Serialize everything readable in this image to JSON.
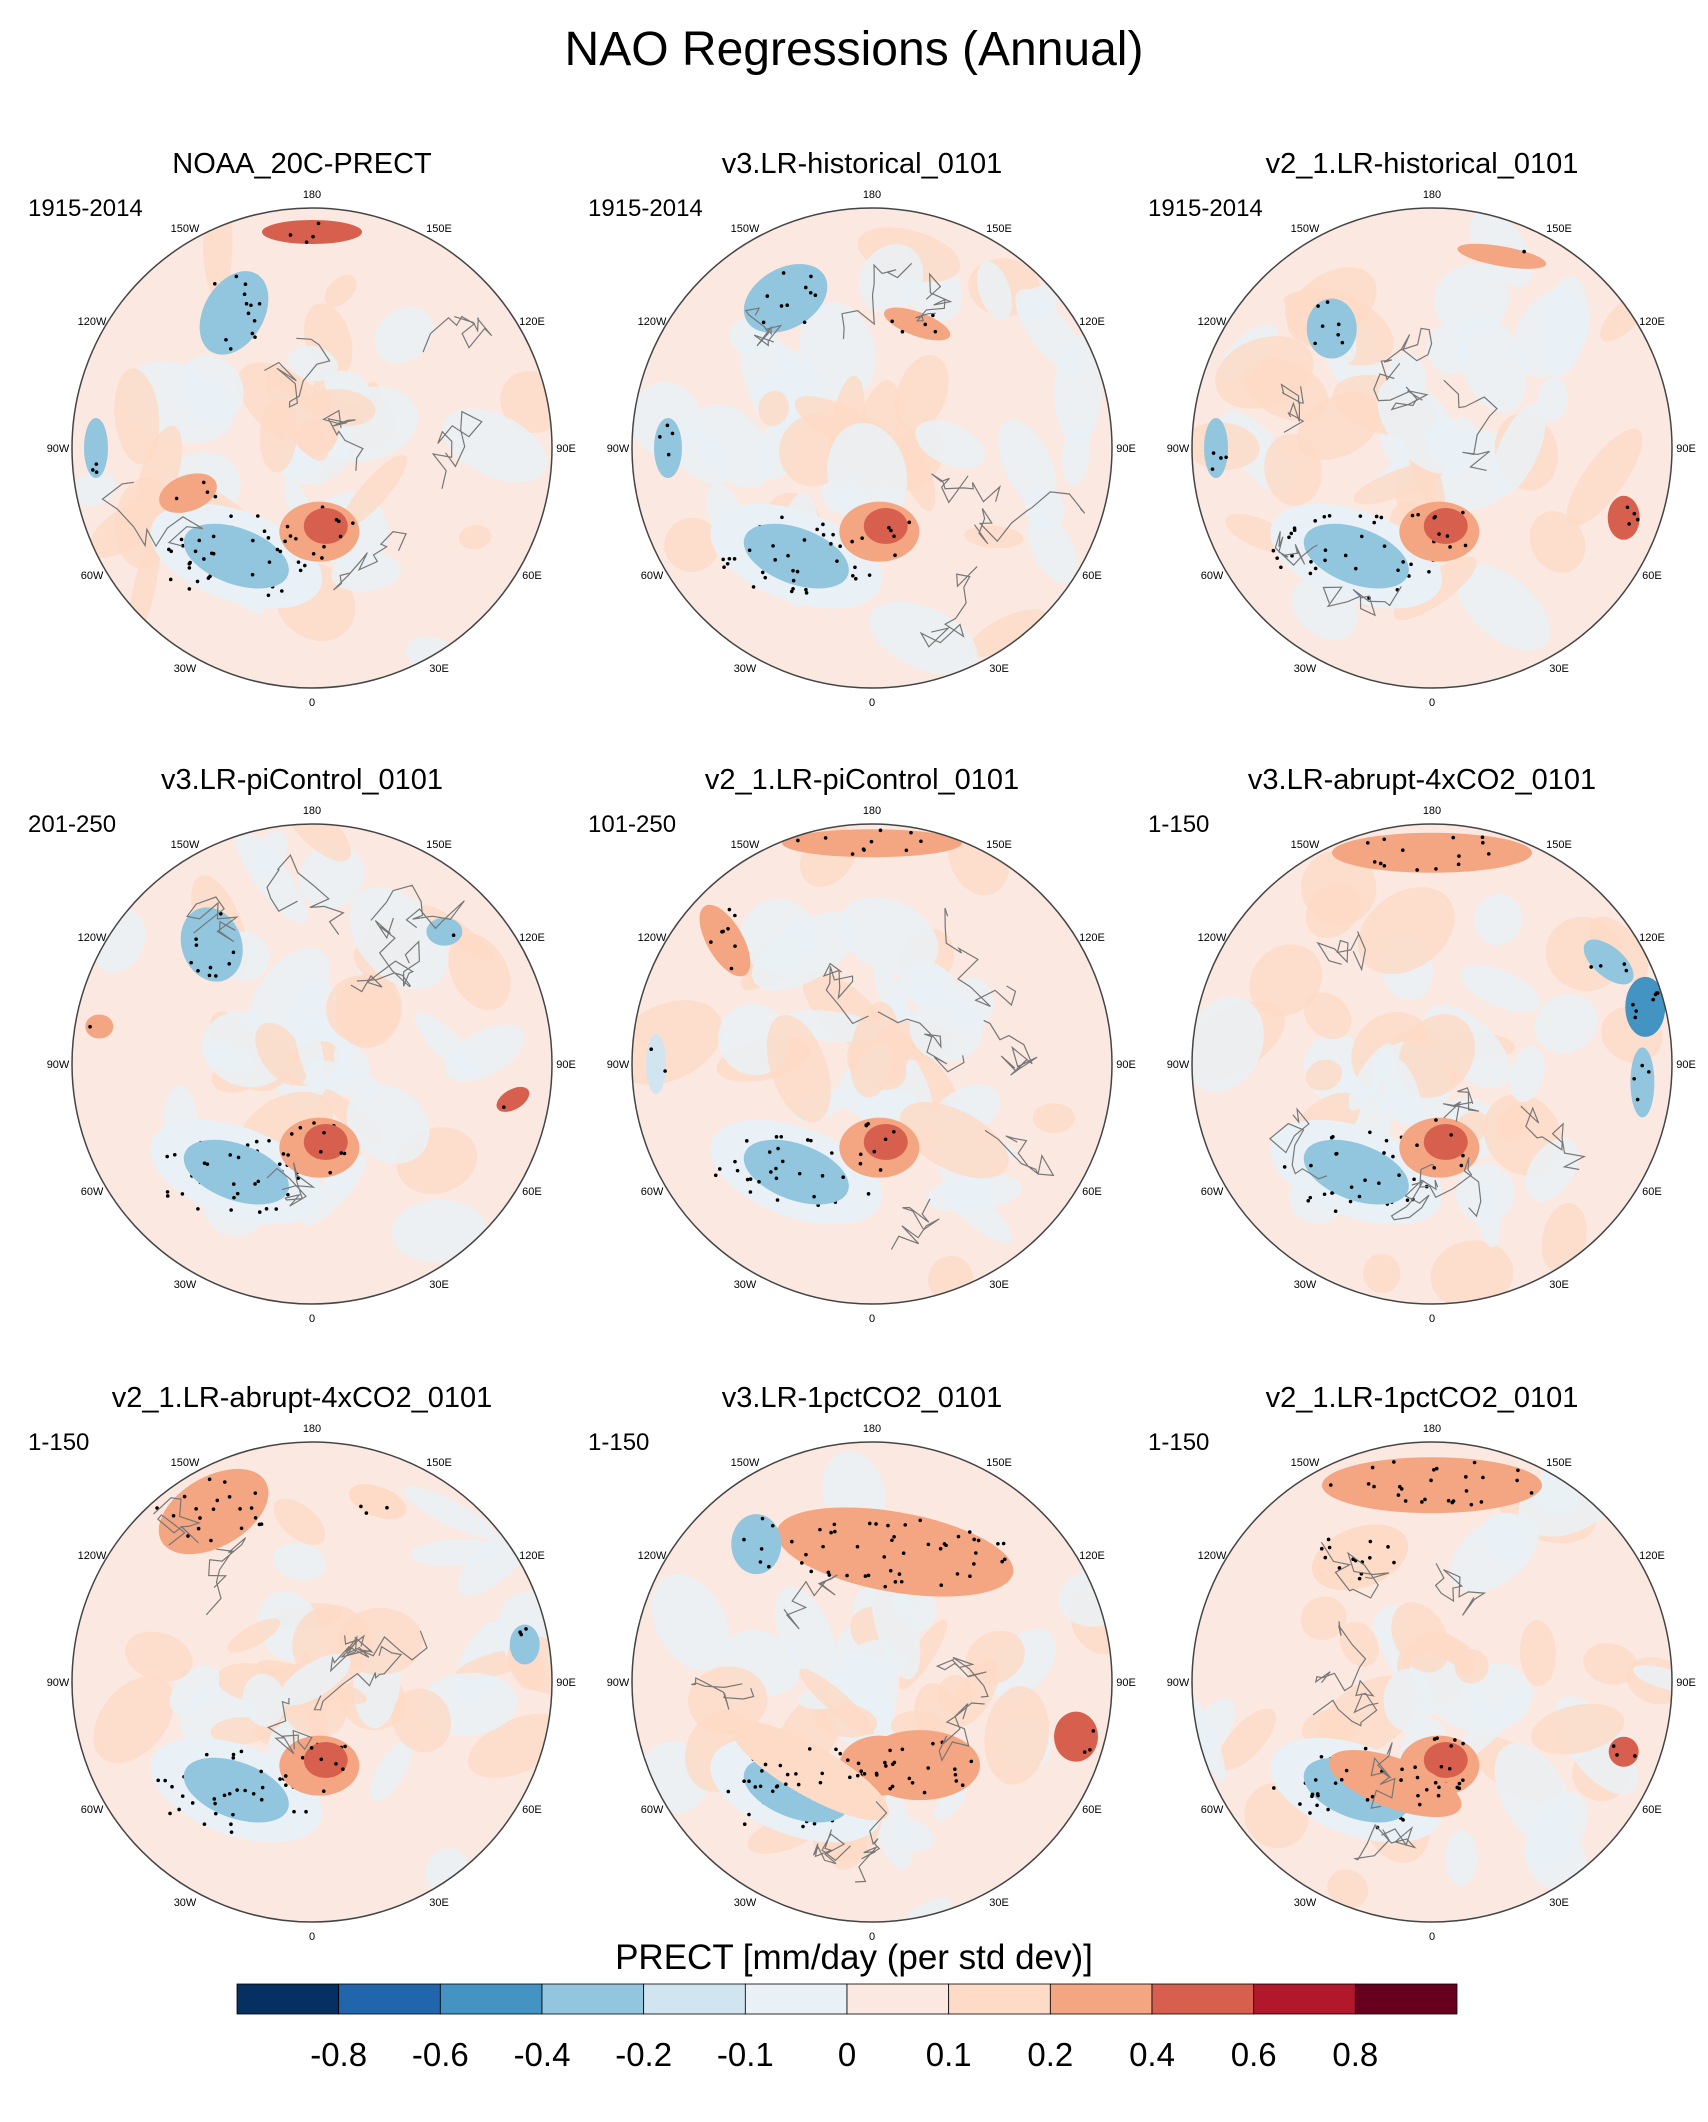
{
  "title": "NAO Regressions (Annual)",
  "panels": [
    {
      "title": "NOAA_20C-PRECT",
      "period": "1915-2014"
    },
    {
      "title": "v3.LR-historical_0101",
      "period": "1915-2014"
    },
    {
      "title": "v2_1.LR-historical_0101",
      "period": "1915-2014"
    },
    {
      "title": "v3.LR-piControl_0101",
      "period": "201-250"
    },
    {
      "title": "v2_1.LR-piControl_0101",
      "period": "101-250"
    },
    {
      "title": "v3.LR-abrupt-4xCO2_0101",
      "period": "1-150"
    },
    {
      "title": "v2_1.LR-abrupt-4xCO2_0101",
      "period": "1-150"
    },
    {
      "title": "v3.LR-1pctCO2_0101",
      "period": "1-150"
    },
    {
      "title": "v2_1.LR-1pctCO2_0101",
      "period": "1-150"
    }
  ],
  "longitude_labels": [
    "180",
    "150E",
    "120E",
    "90E",
    "60E",
    "30E",
    "0",
    "30W",
    "60W",
    "90W",
    "120W",
    "150W"
  ],
  "colorbar": {
    "title": "PRECT [mm/day (per std dev)]",
    "colors": [
      "#053061",
      "#2166ac",
      "#4393c3",
      "#92c5de",
      "#d1e5f0",
      "#e9f1f6",
      "#fbe9e1",
      "#fddbc7",
      "#f4a582",
      "#d6604d",
      "#b2182b",
      "#67001f"
    ],
    "labels": [
      "-0.8",
      "-0.6",
      "-0.4",
      "-0.2",
      "-0.1",
      "0",
      "0.1",
      "0.2",
      "0.4",
      "0.6",
      "0.8"
    ]
  },
  "chart_data": {
    "type": "heatmap",
    "projection": "north-polar-stereographic",
    "variable": "PRECT",
    "units": "mm/day (per std dev)",
    "levels": [
      -0.8,
      -0.6,
      -0.4,
      -0.2,
      -0.1,
      0,
      0.1,
      0.2,
      0.4,
      0.6,
      0.8
    ],
    "note": "Regression of annual precipitation onto NAO index; stippling marks significant areas",
    "features": {
      "north_atlantic_dipole": "negative (blue) over central/western North Atlantic, positive (red) over northern Europe / Scandinavia in all panels",
      "1pctCO2": "widespread positive anomalies over high latitudes with extensive stippling"
    }
  }
}
